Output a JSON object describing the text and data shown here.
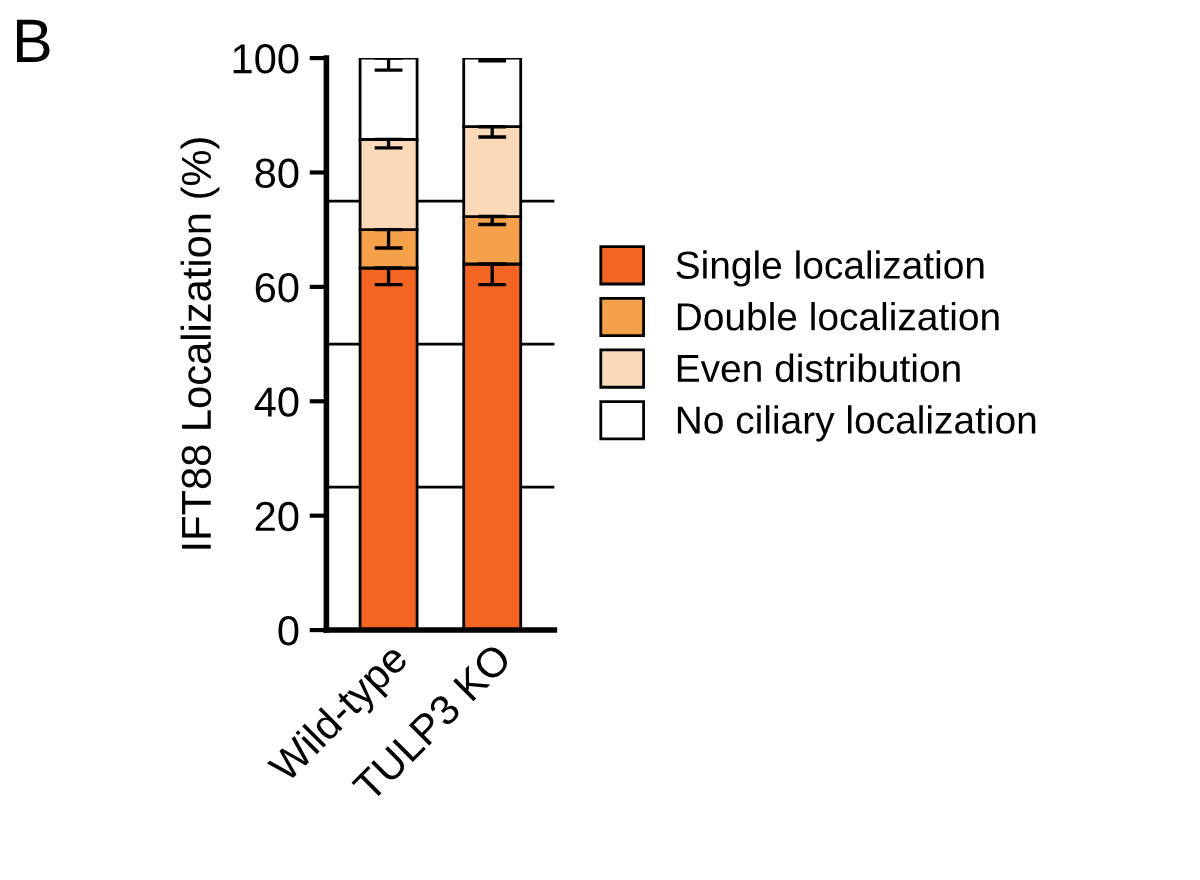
{
  "chart_data": {
    "type": "bar",
    "stacked": true,
    "ylabel": "IFT88 Localization (%)",
    "annotations": [
      "B"
    ],
    "categories": [
      "Wild-type",
      "TULP3 KO"
    ],
    "series": [
      {
        "name": "Single localization",
        "color": "#f26522",
        "values": [
          63.3,
          64.0
        ],
        "errors": [
          [
            60.4,
            63.3
          ],
          [
            60.4,
            64.0
          ]
        ]
      },
      {
        "name": "Double localization",
        "color": "#f5a04a",
        "values": [
          6.7,
          8.3
        ],
        "errors": [
          [
            66.8,
            70.0
          ],
          [
            70.9,
            72.3
          ]
        ]
      },
      {
        "name": "Even distribution",
        "color": "#fad9b8",
        "values": [
          15.8,
          15.7
        ],
        "errors": [
          [
            84.3,
            85.8
          ],
          [
            86.2,
            88.0
          ]
        ]
      },
      {
        "name": "No ciliary localization",
        "color": "#ffffff",
        "values": [
          14.2,
          12.0
        ],
        "errors": [
          [
            97.9,
            100
          ],
          [
            99.5,
            100
          ]
        ]
      }
    ],
    "ylim": [
      0,
      100
    ],
    "yticks": [
      0,
      20,
      40,
      60,
      80,
      100
    ],
    "ref_lines": [
      {
        "axis": "y",
        "value": 25,
        "label": null,
        "color": "#000000"
      },
      {
        "axis": "y",
        "value": 50,
        "label": null,
        "color": "#000000"
      },
      {
        "axis": "y",
        "value": 75,
        "label": null,
        "color": "#000000"
      }
    ],
    "legend": "right",
    "grid": false
  }
}
